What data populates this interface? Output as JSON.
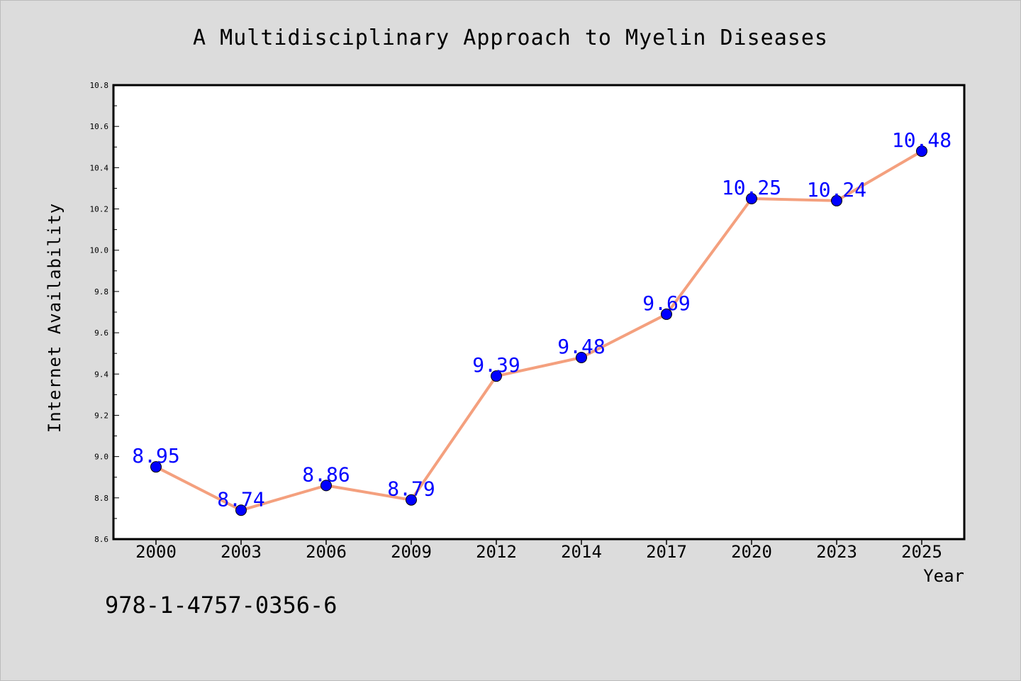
{
  "chart_data": {
    "type": "line",
    "title": "A Multidisciplinary Approach to Myelin Diseases",
    "xlabel": "Year",
    "ylabel": "Internet Availability",
    "categories": [
      "2000",
      "2003",
      "2006",
      "2009",
      "2012",
      "2014",
      "2017",
      "2020",
      "2023",
      "2025"
    ],
    "series": [
      {
        "values": [
          8.95,
          8.74,
          8.86,
          8.79,
          9.39,
          9.48,
          9.69,
          10.25,
          10.24,
          10.48
        ]
      }
    ],
    "data_labels": [
      "8.95",
      "8.74",
      "8.86",
      "8.79",
      "9.39",
      "9.48",
      "9.69",
      "10.25",
      "10.24",
      "10.48"
    ],
    "ylim": [
      8.6,
      10.8
    ],
    "yticks": [
      "8.6",
      "8.8",
      "9.0",
      "9.2",
      "9.4",
      "9.6",
      "9.8",
      "10.0",
      "10.2",
      "10.4",
      "10.6",
      "10.8"
    ],
    "grid": false,
    "line_color": "#f4a07e",
    "marker_color": "#0000ff",
    "label_color": "#0000ff"
  },
  "footer_text": "978-1-4757-0356-6"
}
